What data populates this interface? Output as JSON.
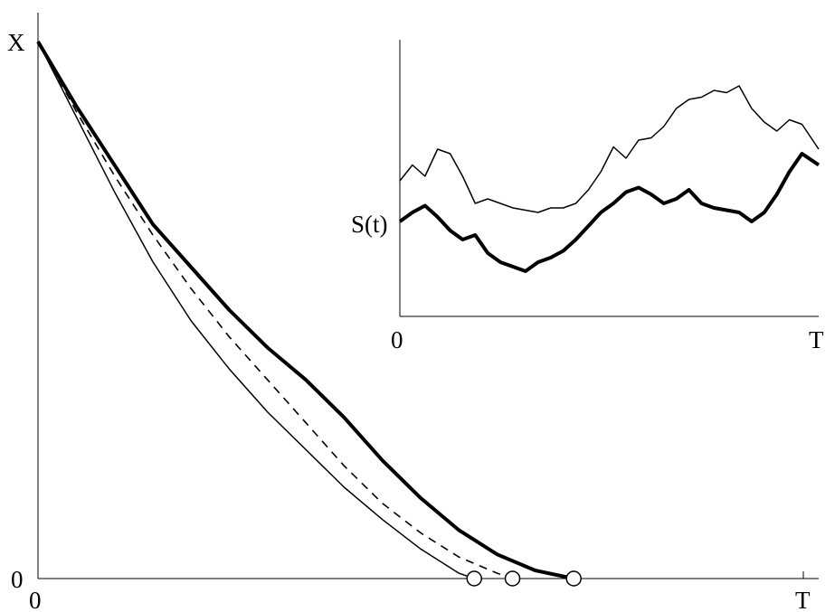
{
  "chart_data": [
    {
      "type": "line",
      "title": "",
      "xlabel": "",
      "ylabel": "",
      "x_ticks": [
        "0",
        "T"
      ],
      "y_ticks": [
        "0",
        "X"
      ],
      "xlim": [
        0,
        1
      ],
      "ylim": [
        0,
        1
      ],
      "grid": false,
      "series": [
        {
          "style": "thick",
          "x": [
            0,
            0.05,
            0.1,
            0.15,
            0.2,
            0.25,
            0.3,
            0.35,
            0.4,
            0.45,
            0.5,
            0.55,
            0.6,
            0.65,
            0.7
          ],
          "values": [
            1.0,
            0.88,
            0.77,
            0.66,
            0.58,
            0.5,
            0.43,
            0.37,
            0.3,
            0.22,
            0.15,
            0.09,
            0.045,
            0.015,
            0.0
          ],
          "end_marker": "open-circle"
        },
        {
          "style": "dashed",
          "x": [
            0,
            0.05,
            0.1,
            0.15,
            0.2,
            0.25,
            0.3,
            0.35,
            0.4,
            0.45,
            0.5,
            0.55,
            0.6,
            0.62
          ],
          "values": [
            1.0,
            0.87,
            0.75,
            0.64,
            0.54,
            0.45,
            0.37,
            0.29,
            0.21,
            0.14,
            0.085,
            0.04,
            0.01,
            0.0
          ],
          "end_marker": "open-circle"
        },
        {
          "style": "thin",
          "x": [
            0,
            0.05,
            0.1,
            0.15,
            0.2,
            0.25,
            0.3,
            0.35,
            0.4,
            0.45,
            0.5,
            0.55,
            0.57
          ],
          "values": [
            1.0,
            0.86,
            0.72,
            0.59,
            0.48,
            0.39,
            0.31,
            0.24,
            0.17,
            0.11,
            0.055,
            0.01,
            0.0
          ],
          "end_marker": "open-circle"
        }
      ]
    },
    {
      "type": "line",
      "title": "",
      "xlabel": "",
      "ylabel": "S(t)",
      "x_ticks": [
        "0",
        "T"
      ],
      "xlim": [
        0,
        1
      ],
      "grid": false,
      "series": [
        {
          "style": "thin",
          "x": [
            0,
            0.03,
            0.06,
            0.09,
            0.12,
            0.15,
            0.18,
            0.21,
            0.24,
            0.27,
            0.3,
            0.33,
            0.36,
            0.39,
            0.42,
            0.45,
            0.48,
            0.51,
            0.54,
            0.57,
            0.6,
            0.63,
            0.66,
            0.69,
            0.72,
            0.75,
            0.78,
            0.81,
            0.84,
            0.87,
            0.9,
            0.93,
            0.96,
            1.0
          ],
          "values": [
            0.48,
            0.55,
            0.5,
            0.62,
            0.6,
            0.5,
            0.38,
            0.4,
            0.38,
            0.36,
            0.35,
            0.34,
            0.36,
            0.36,
            0.38,
            0.44,
            0.52,
            0.63,
            0.58,
            0.66,
            0.67,
            0.72,
            0.8,
            0.84,
            0.85,
            0.88,
            0.87,
            0.9,
            0.8,
            0.74,
            0.7,
            0.75,
            0.73,
            0.62
          ]
        },
        {
          "style": "thick",
          "x": [
            0,
            0.03,
            0.06,
            0.09,
            0.12,
            0.15,
            0.18,
            0.21,
            0.24,
            0.27,
            0.3,
            0.33,
            0.36,
            0.39,
            0.42,
            0.45,
            0.48,
            0.51,
            0.54,
            0.57,
            0.6,
            0.63,
            0.66,
            0.69,
            0.72,
            0.75,
            0.78,
            0.81,
            0.84,
            0.87,
            0.9,
            0.93,
            0.96,
            1.0
          ],
          "values": [
            0.3,
            0.34,
            0.37,
            0.32,
            0.26,
            0.22,
            0.24,
            0.16,
            0.12,
            0.1,
            0.08,
            0.12,
            0.14,
            0.17,
            0.22,
            0.28,
            0.34,
            0.38,
            0.43,
            0.45,
            0.42,
            0.38,
            0.4,
            0.44,
            0.38,
            0.36,
            0.35,
            0.34,
            0.3,
            0.34,
            0.42,
            0.52,
            0.6,
            0.55
          ]
        }
      ]
    }
  ]
}
